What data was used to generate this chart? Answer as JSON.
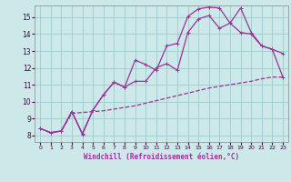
{
  "xlabel": "Windchill (Refroidissement éolien,°C)",
  "background_color": "#cce8e8",
  "grid_color": "#99cccc",
  "line_color": "#993399",
  "xlim": [
    -0.5,
    23.5
  ],
  "ylim": [
    7.6,
    15.7
  ],
  "xticks": [
    0,
    1,
    2,
    3,
    4,
    5,
    6,
    7,
    8,
    9,
    10,
    11,
    12,
    13,
    14,
    15,
    16,
    17,
    18,
    19,
    20,
    21,
    22,
    23
  ],
  "yticks": [
    8,
    9,
    10,
    11,
    12,
    13,
    14,
    15
  ],
  "line1_x": [
    0,
    1,
    2,
    3,
    4,
    5,
    6,
    7,
    8,
    9,
    10,
    11,
    12,
    13,
    14,
    15,
    16,
    17,
    18,
    19,
    20,
    21,
    22,
    23
  ],
  "line1_y": [
    8.4,
    8.15,
    8.25,
    9.4,
    8.05,
    9.5,
    10.4,
    11.15,
    10.85,
    12.45,
    12.2,
    11.85,
    13.3,
    13.45,
    15.05,
    15.5,
    15.6,
    15.55,
    14.65,
    15.55,
    14.1,
    13.3,
    13.1,
    11.45
  ],
  "line2_x": [
    0,
    1,
    2,
    3,
    4,
    5,
    6,
    7,
    8,
    9,
    10,
    11,
    12,
    13,
    14,
    15,
    16,
    17,
    18,
    19,
    20,
    21,
    22,
    23
  ],
  "line2_y": [
    8.4,
    8.15,
    8.25,
    9.4,
    8.1,
    9.5,
    10.4,
    11.15,
    10.85,
    11.2,
    11.2,
    12.0,
    12.25,
    11.85,
    14.1,
    14.9,
    15.1,
    14.35,
    14.65,
    14.1,
    14.0,
    13.3,
    13.1,
    12.85
  ],
  "line3_x": [
    0,
    1,
    2,
    3,
    4,
    5,
    6,
    7,
    8,
    9,
    10,
    11,
    12,
    13,
    14,
    15,
    16,
    17,
    18,
    19,
    20,
    21,
    22,
    23
  ],
  "line3_y": [
    8.4,
    8.15,
    8.25,
    9.3,
    9.35,
    9.4,
    9.45,
    9.55,
    9.65,
    9.75,
    9.9,
    10.05,
    10.2,
    10.35,
    10.5,
    10.65,
    10.8,
    10.9,
    11.0,
    11.1,
    11.2,
    11.35,
    11.45,
    11.45
  ]
}
